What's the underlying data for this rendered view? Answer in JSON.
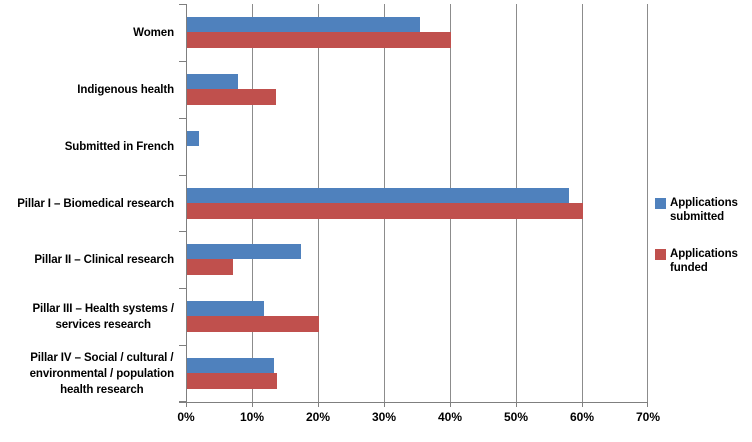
{
  "chart_data": {
    "type": "bar",
    "orientation": "horizontal",
    "title": "",
    "xlabel": "",
    "ylabel": "",
    "xlim": [
      0,
      70
    ],
    "xtick_step": 10,
    "xtick_labels": [
      "0%",
      "10%",
      "20%",
      "30%",
      "40%",
      "50%",
      "60%",
      "70%"
    ],
    "grid": "vertical",
    "legend_position": "right",
    "categories": [
      "Women",
      "Indigenous health",
      "Submitted in French",
      "Pillar I – Biomedical research",
      "Pillar II – Clinical research",
      "Pillar III – Health systems / services research",
      "Pillar IV – Social / cultural / environmental / population health research"
    ],
    "category_label_lines": [
      [
        "Women"
      ],
      [
        "Indigenous health"
      ],
      [
        "Submitted in French"
      ],
      [
        "Pillar I – Biomedical research"
      ],
      [
        "Pillar II – Clinical research"
      ],
      [
        "Pillar III – Health systems /",
        "services research"
      ],
      [
        "Pillar IV – Social / cultural /",
        "environmental / population",
        "health research"
      ]
    ],
    "series": [
      {
        "name": "Applications submitted",
        "legend_lines": [
          "Applications",
          "submitted"
        ],
        "color": "#4F81BD",
        "values": [
          35.3,
          7.8,
          1.8,
          57.9,
          17.3,
          11.7,
          13.2
        ]
      },
      {
        "name": "Applications funded",
        "legend_lines": [
          "Applications",
          "funded"
        ],
        "color": "#C0504D",
        "values": [
          40.0,
          13.5,
          0,
          60.0,
          6.9,
          20.0,
          13.6
        ]
      }
    ],
    "colors": {
      "gridline": "#8C8C8C",
      "axis": "#7F7F7F",
      "text": "#000000",
      "background": "#FFFFFF"
    }
  }
}
